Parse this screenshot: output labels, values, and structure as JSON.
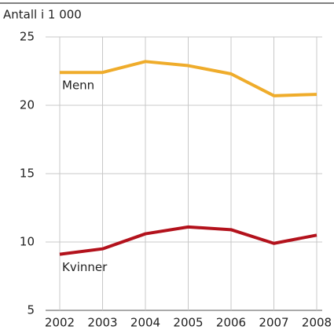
{
  "chart_data": {
    "type": "line",
    "y_axis_label": "Antall i 1 000",
    "categories": [
      "2002",
      "2003",
      "2004",
      "2005",
      "2006",
      "2007",
      "2008"
    ],
    "series": [
      {
        "name": "Menn",
        "color": "#efac2b",
        "values": [
          22.4,
          22.4,
          23.2,
          22.9,
          22.3,
          20.7,
          20.8
        ]
      },
      {
        "name": "Kvinner",
        "color": "#b3121c",
        "values": [
          9.1,
          9.5,
          10.6,
          11.1,
          10.9,
          9.9,
          10.5
        ]
      }
    ],
    "ylim": [
      5,
      25
    ],
    "yticks": [
      5,
      10,
      15,
      20,
      25
    ],
    "grid": true
  }
}
